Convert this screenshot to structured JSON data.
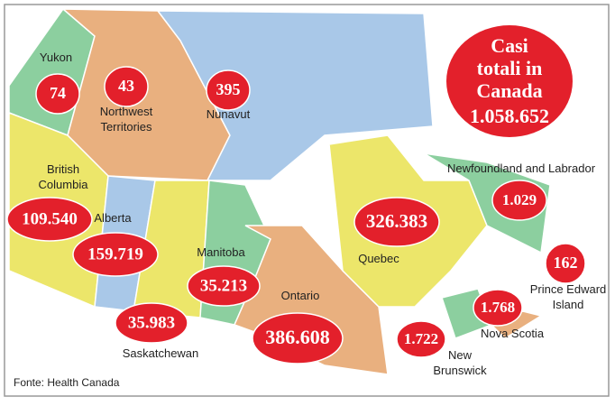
{
  "header": {
    "title_lines": [
      "Casi",
      "totali in",
      "Canada"
    ],
    "total": "1.058.652"
  },
  "regions": [
    {
      "label_lines": [
        "Yukon"
      ],
      "value": "74"
    },
    {
      "label_lines": [
        "Northwest",
        "Territories"
      ],
      "value": "43"
    },
    {
      "label_lines": [
        "Nunavut"
      ],
      "value": "395"
    },
    {
      "label_lines": [
        "British",
        "Columbia"
      ],
      "value": "109.540"
    },
    {
      "label_lines": [
        "Alberta"
      ],
      "value": "159.719"
    },
    {
      "label_lines": [
        "Saskatchewan"
      ],
      "value": "35.983"
    },
    {
      "label_lines": [
        "Manitoba"
      ],
      "value": "35.213"
    },
    {
      "label_lines": [
        "Ontario"
      ],
      "value": "386.608"
    },
    {
      "label_lines": [
        "Quebec"
      ],
      "value": "326.383"
    },
    {
      "label_lines": [
        "Newfoundland and Labrador"
      ],
      "value": "1.029"
    },
    {
      "label_lines": [
        "Prince Edward",
        "Island"
      ],
      "value": "162"
    },
    {
      "label_lines": [
        "Nova Scotia"
      ],
      "value": "1.768"
    },
    {
      "label_lines": [
        "New",
        "Brunswick"
      ],
      "value": "1.722"
    }
  ],
  "footer": {
    "source": "Fonte: Health Canada"
  }
}
